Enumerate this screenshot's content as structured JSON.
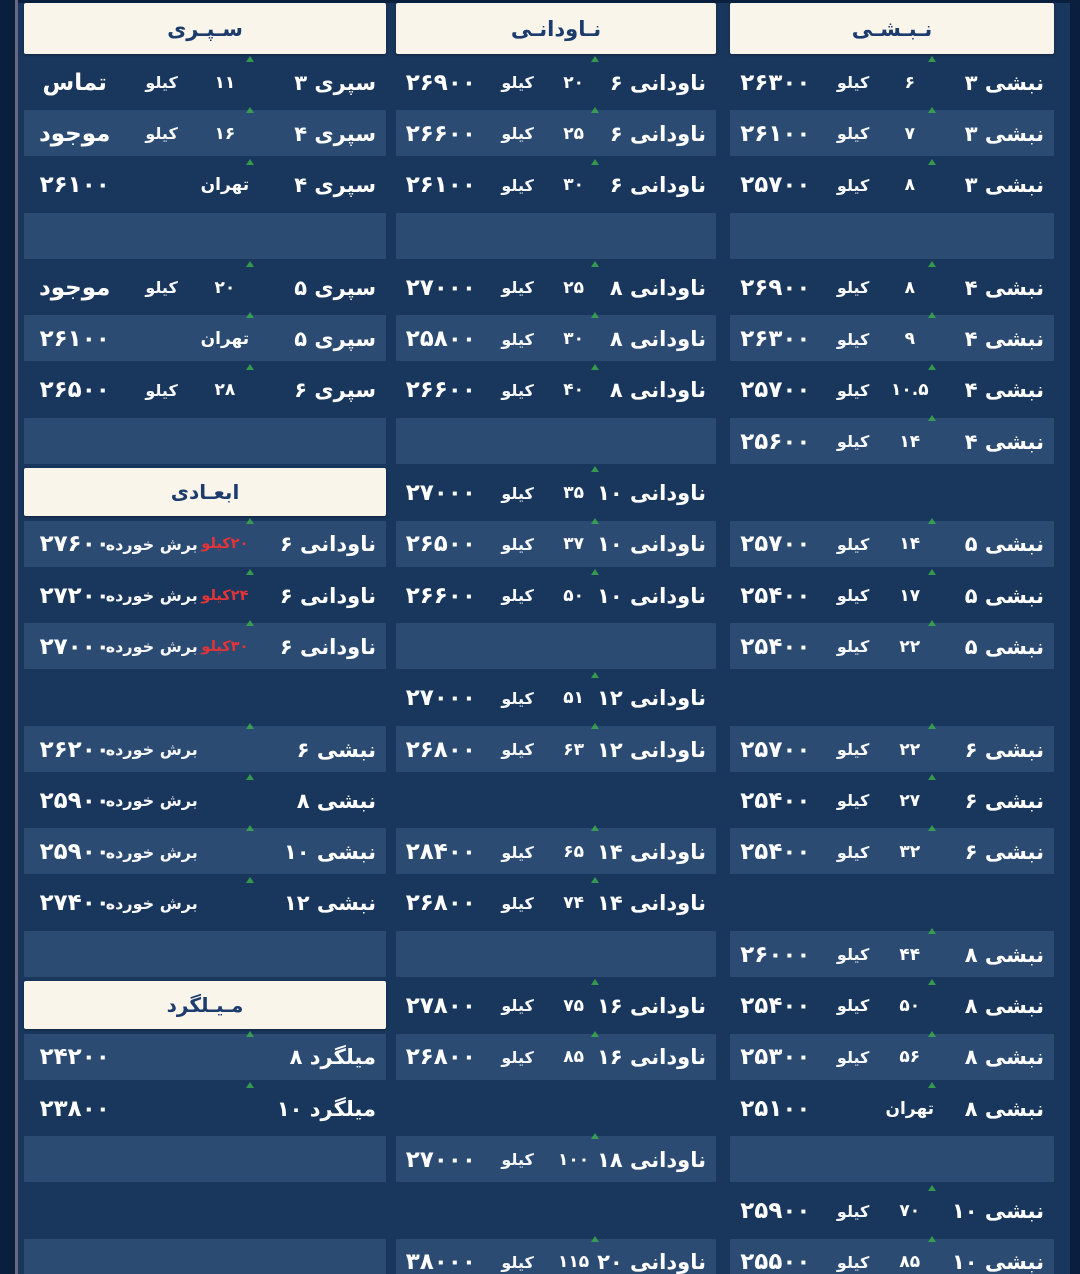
{
  "palette": {
    "frame": "#0a1f3d",
    "board_bg": "#19365c",
    "row_bar": "#2c4b73",
    "header_bg": "#faf5ea",
    "header_text": "#1c3c6e",
    "text": "#ffffff",
    "red": "#e43438",
    "green": "#3cb24a",
    "edge_line": "#9187a3"
  },
  "table": {
    "columns": [
      {
        "id": "separi",
        "header": "سـپـری",
        "rows": [
          {
            "t": "d",
            "name": "سپری ۳",
            "size": "۱۱",
            "unit": "کیلو",
            "price": "تماس"
          },
          {
            "t": "d",
            "name": "سپری ۴",
            "size": "۱۶",
            "unit": "کیلو",
            "price": "موجود"
          },
          {
            "t": "d",
            "name": "سپری ۴",
            "size": "تهران",
            "unit": "",
            "price": "۲۶۱۰۰"
          },
          {
            "t": "e"
          },
          {
            "t": "d",
            "name": "سپری ۵",
            "size": "۲۰",
            "unit": "کیلو",
            "price": "موجود"
          },
          {
            "t": "d",
            "name": "سپری ۵",
            "size": "تهران",
            "unit": "",
            "price": "۲۶۱۰۰"
          },
          {
            "t": "d",
            "name": "سپری ۶",
            "size": "۲۸",
            "unit": "کیلو",
            "price": "۲۶۵۰۰"
          },
          {
            "t": "e"
          },
          {
            "t": "h",
            "title": "ابعـادی"
          },
          {
            "t": "d",
            "name": "ناودانی ۶",
            "size": "۲۰کیلو",
            "red": true,
            "unit": "برش خورده",
            "price": "۲۷۶۰۰"
          },
          {
            "t": "d",
            "name": "ناودانی ۶",
            "size": "۲۴کیلو",
            "red": true,
            "unit": "برش خورده",
            "price": "۲۷۲۰۰"
          },
          {
            "t": "d",
            "name": "ناودانی ۶",
            "size": "۳۰کیلو",
            "red": true,
            "unit": "برش خورده",
            "price": "۲۷۰۰۰"
          },
          {
            "t": "e"
          },
          {
            "t": "d",
            "name": "نبشی ۶",
            "size": "",
            "unit": "برش خورده",
            "price": "۲۶۲۰۰"
          },
          {
            "t": "d",
            "name": "نبشی ۸",
            "size": "",
            "unit": "برش خورده",
            "price": "۲۵۹۰۰"
          },
          {
            "t": "d",
            "name": "نبشی ۱۰",
            "size": "",
            "unit": "برش خورده",
            "price": "۲۵۹۰۰"
          },
          {
            "t": "d",
            "name": "نبشی ۱۲",
            "size": "",
            "unit": "برش خورده",
            "price": "۲۷۴۰۰"
          },
          {
            "t": "e"
          },
          {
            "t": "h",
            "title": "مـیـلگرد"
          },
          {
            "t": "d",
            "name": "میلگرد ۸",
            "size": "",
            "unit": "",
            "price": "۲۴۲۰۰"
          },
          {
            "t": "d",
            "name": "میلگرد ۱۰",
            "size": "",
            "unit": "",
            "price": "۲۳۸۰۰"
          },
          {
            "t": "e"
          },
          {
            "t": "e"
          },
          {
            "t": "e"
          }
        ]
      },
      {
        "id": "navodani",
        "header": "نـاودانـی",
        "rows": [
          {
            "t": "d",
            "name": "ناودانی ۶",
            "size": "۲۰",
            "unit": "کیلو",
            "price": "۲۶۹۰۰"
          },
          {
            "t": "d",
            "name": "ناودانی ۶",
            "size": "۲۵",
            "unit": "کیلو",
            "price": "۲۶۶۰۰"
          },
          {
            "t": "d",
            "name": "ناودانی ۶",
            "size": "۳۰",
            "unit": "کیلو",
            "price": "۲۶۱۰۰"
          },
          {
            "t": "e"
          },
          {
            "t": "d",
            "name": "ناودانی ۸",
            "size": "۲۵",
            "unit": "کیلو",
            "price": "۲۷۰۰۰"
          },
          {
            "t": "d",
            "name": "ناودانی ۸",
            "size": "۳۰",
            "unit": "کیلو",
            "price": "۲۵۸۰۰"
          },
          {
            "t": "d",
            "name": "ناودانی ۸",
            "size": "۴۰",
            "unit": "کیلو",
            "price": "۲۶۶۰۰"
          },
          {
            "t": "e"
          },
          {
            "t": "d",
            "name": "ناودانی ۱۰",
            "size": "۳۵",
            "unit": "کیلو",
            "price": "۲۷۰۰۰"
          },
          {
            "t": "d",
            "name": "ناودانی ۱۰",
            "size": "۳۷",
            "unit": "کیلو",
            "price": "۲۶۵۰۰"
          },
          {
            "t": "d",
            "name": "ناودانی ۱۰",
            "size": "۵۰",
            "unit": "کیلو",
            "price": "۲۶۶۰۰"
          },
          {
            "t": "e"
          },
          {
            "t": "d",
            "name": "ناودانی ۱۲",
            "size": "۵۱",
            "unit": "کیلو",
            "price": "۲۷۰۰۰"
          },
          {
            "t": "d",
            "name": "ناودانی ۱۲",
            "size": "۶۳",
            "unit": "کیلو",
            "price": "۲۶۸۰۰"
          },
          {
            "t": "e"
          },
          {
            "t": "d",
            "name": "ناودانی ۱۴",
            "size": "۶۵",
            "unit": "کیلو",
            "price": "۲۸۴۰۰"
          },
          {
            "t": "d",
            "name": "ناودانی ۱۴",
            "size": "۷۴",
            "unit": "کیلو",
            "price": "۲۶۸۰۰"
          },
          {
            "t": "e"
          },
          {
            "t": "d",
            "name": "ناودانی ۱۶",
            "size": "۷۵",
            "unit": "کیلو",
            "price": "۲۷۸۰۰"
          },
          {
            "t": "d",
            "name": "ناودانی ۱۶",
            "size": "۸۵",
            "unit": "کیلو",
            "price": "۲۶۸۰۰"
          },
          {
            "t": "e"
          },
          {
            "t": "d",
            "name": "ناودانی ۱۸",
            "size": "۱۰۰",
            "unit": "کیلو",
            "price": "۲۷۰۰۰"
          },
          {
            "t": "e"
          },
          {
            "t": "d",
            "name": "ناودانی ۲۰",
            "size": "۱۱۵",
            "unit": "کیلو",
            "price": "۳۸۰۰۰"
          }
        ]
      },
      {
        "id": "nabshi",
        "header": "نـبـشـی",
        "rows": [
          {
            "t": "d",
            "name": "نبشی ۳",
            "size": "۶",
            "unit": "کیلو",
            "price": "۲۶۳۰۰"
          },
          {
            "t": "d",
            "name": "نبشی ۳",
            "size": "۷",
            "unit": "کیلو",
            "price": "۲۶۱۰۰"
          },
          {
            "t": "d",
            "name": "نبشی ۳",
            "size": "۸",
            "unit": "کیلو",
            "price": "۲۵۷۰۰"
          },
          {
            "t": "e"
          },
          {
            "t": "d",
            "name": "نبشی ۴",
            "size": "۸",
            "unit": "کیلو",
            "price": "۲۶۹۰۰"
          },
          {
            "t": "d",
            "name": "نبشی ۴",
            "size": "۹",
            "unit": "کیلو",
            "price": "۲۶۳۰۰"
          },
          {
            "t": "d",
            "name": "نبشی ۴",
            "size": "۱۰.۵",
            "unit": "کیلو",
            "price": "۲۵۷۰۰"
          },
          {
            "t": "d",
            "name": "نبشی ۴",
            "size": "۱۴",
            "unit": "کیلو",
            "price": "۲۵۶۰۰"
          },
          {
            "t": "e"
          },
          {
            "t": "d",
            "name": "نبشی ۵",
            "size": "۱۴",
            "unit": "کیلو",
            "price": "۲۵۷۰۰"
          },
          {
            "t": "d",
            "name": "نبشی ۵",
            "size": "۱۷",
            "unit": "کیلو",
            "price": "۲۵۴۰۰"
          },
          {
            "t": "d",
            "name": "نبشی ۵",
            "size": "۲۲",
            "unit": "کیلو",
            "price": "۲۵۴۰۰"
          },
          {
            "t": "e"
          },
          {
            "t": "d",
            "name": "نبشی ۶",
            "size": "۲۲",
            "unit": "کیلو",
            "price": "۲۵۷۰۰"
          },
          {
            "t": "d",
            "name": "نبشی ۶",
            "size": "۲۷",
            "unit": "کیلو",
            "price": "۲۵۴۰۰"
          },
          {
            "t": "d",
            "name": "نبشی ۶",
            "size": "۳۲",
            "unit": "کیلو",
            "price": "۲۵۴۰۰"
          },
          {
            "t": "e"
          },
          {
            "t": "d",
            "name": "نبشی ۸",
            "size": "۴۴",
            "unit": "کیلو",
            "price": "۲۶۰۰۰"
          },
          {
            "t": "d",
            "name": "نبشی ۸",
            "size": "۵۰",
            "unit": "کیلو",
            "price": "۲۵۴۰۰"
          },
          {
            "t": "d",
            "name": "نبشی ۸",
            "size": "۵۶",
            "unit": "کیلو",
            "price": "۲۵۳۰۰"
          },
          {
            "t": "d",
            "name": "نبشی ۸",
            "size": "تهران",
            "unit": "",
            "price": "۲۵۱۰۰"
          },
          {
            "t": "e"
          },
          {
            "t": "d",
            "name": "نبشی ۱۰",
            "size": "۷۰",
            "unit": "کیلو",
            "price": "۲۵۹۰۰"
          },
          {
            "t": "d",
            "name": "نبشی ۱۰",
            "size": "۸۵",
            "unit": "کیلو",
            "price": "۲۵۵۰۰"
          }
        ]
      }
    ]
  }
}
